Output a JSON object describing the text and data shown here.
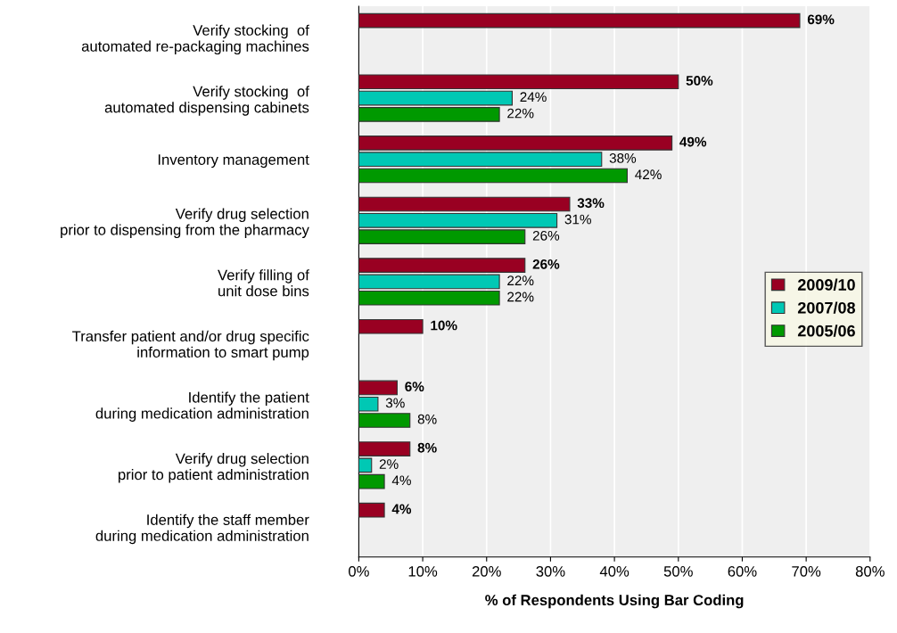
{
  "chart_data": {
    "type": "bar",
    "orientation": "horizontal",
    "xlabel": "% of Respondents Using Bar Coding",
    "categories": [
      "Verify stocking  of\nautomated re-packaging machines",
      "Verify stocking  of\nautomated dispensing cabinets",
      "Inventory management",
      "Verify drug selection\nprior to dispensing from the pharmacy",
      "Verify filling of\nunit dose bins",
      "Transfer patient and/or drug specific\ninformation to smart pump",
      "Identify the patient\nduring medication administration",
      "Verify drug selection\nprior to patient administration",
      "Identify the staff member\nduring medication administration"
    ],
    "series": [
      {
        "name": "2009/10",
        "color": "#990022",
        "values": [
          69,
          50,
          49,
          33,
          26,
          10,
          6,
          8,
          4
        ],
        "value_labels": [
          "69%",
          "50%",
          "49%",
          "33%",
          "26%",
          "10%",
          "6%",
          "8%",
          "4%"
        ]
      },
      {
        "name": "2007/08",
        "color": "#00c8b4",
        "values": [
          null,
          24,
          38,
          31,
          22,
          null,
          3,
          2,
          null
        ],
        "value_labels": [
          null,
          "24%",
          "38%",
          "31%",
          "22%",
          null,
          "3%",
          "2%",
          null
        ]
      },
      {
        "name": "2005/06",
        "color": "#009900",
        "values": [
          null,
          22,
          42,
          26,
          22,
          null,
          8,
          4,
          null
        ],
        "value_labels": [
          null,
          "22%",
          "42%",
          "26%",
          "22%",
          null,
          "8%",
          "4%",
          null
        ]
      }
    ],
    "xlim": [
      0,
      80
    ],
    "xticks": [
      {
        "value": 0,
        "label": "0%"
      },
      {
        "value": 10,
        "label": "10%"
      },
      {
        "value": 20,
        "label": "20%"
      },
      {
        "value": 30,
        "label": "30%"
      },
      {
        "value": 40,
        "label": "40%"
      },
      {
        "value": 50,
        "label": "50%"
      },
      {
        "value": 60,
        "label": "60%"
      },
      {
        "value": 70,
        "label": "70%"
      },
      {
        "value": 80,
        "label": "80%"
      }
    ],
    "grid": "x",
    "legend": "right"
  }
}
